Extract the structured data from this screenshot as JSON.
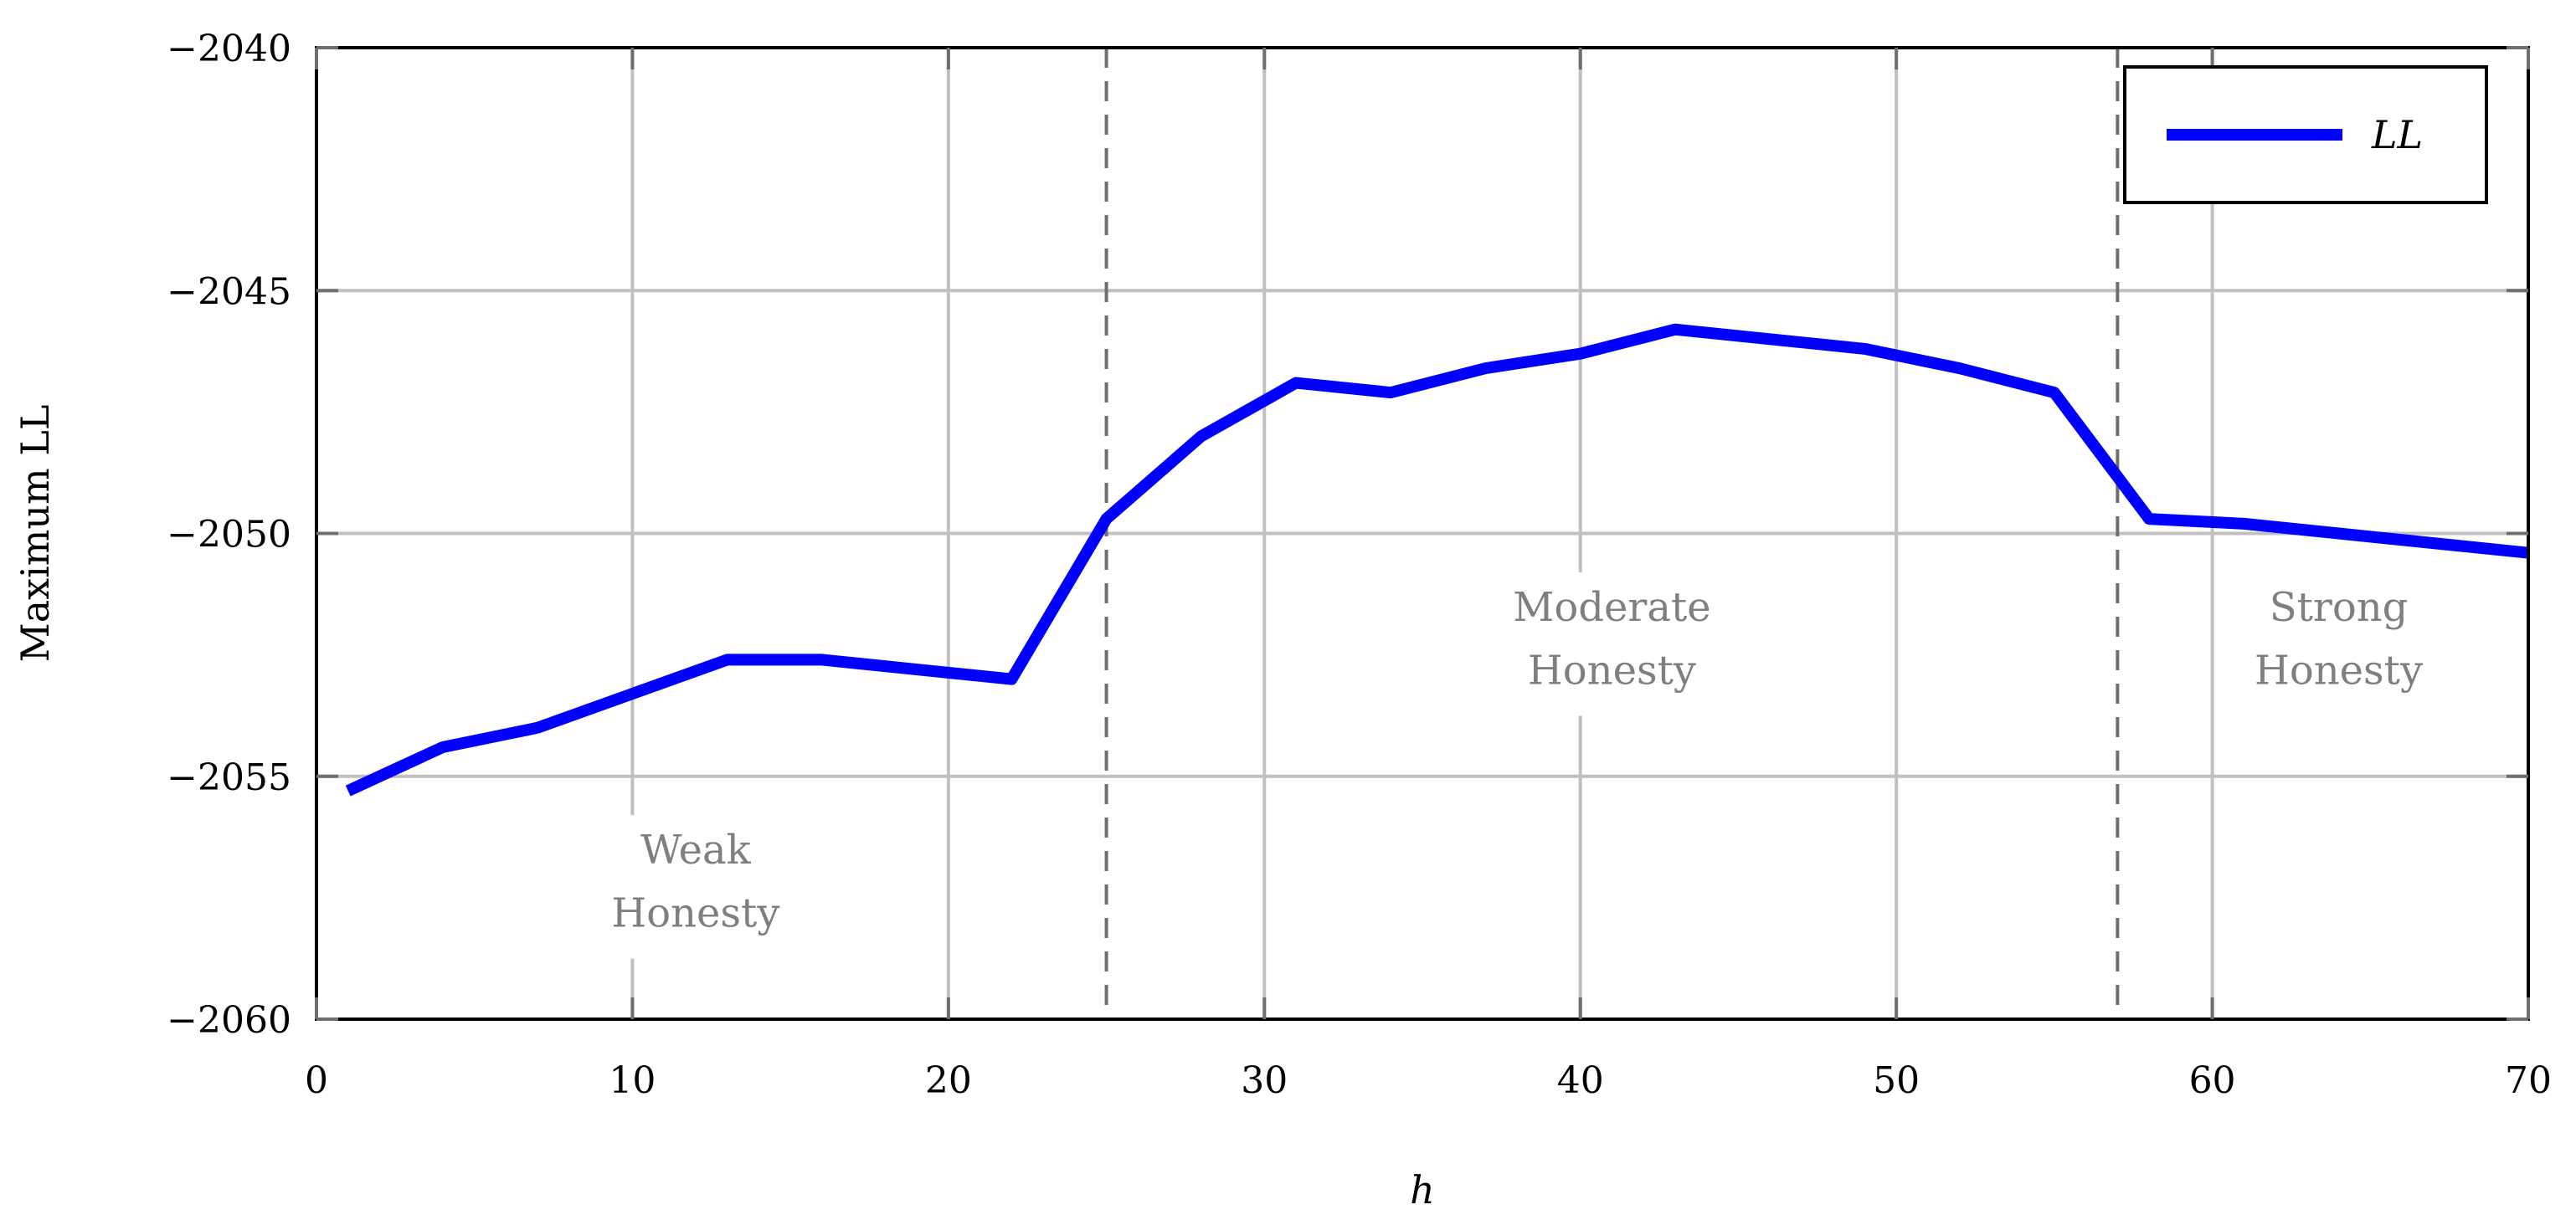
{
  "chart_data": {
    "type": "line",
    "xlabel": "h",
    "ylabel": "Maximum LL",
    "xlim": [
      0,
      70
    ],
    "ylim": [
      -2060,
      -2040
    ],
    "x_ticks": [
      0,
      10,
      20,
      30,
      40,
      50,
      60,
      70
    ],
    "y_ticks": [
      -2040,
      -2045,
      -2050,
      -2055,
      -2060
    ],
    "y_tick_labels": [
      "−2040",
      "−2045",
      "−2050",
      "−2055",
      "−2060"
    ],
    "grid": true,
    "legend_position": "top-right",
    "series": [
      {
        "name": "LL",
        "color": "#0000ff",
        "x": [
          1,
          4,
          7,
          10,
          13,
          16,
          19,
          22,
          25,
          28,
          31,
          34,
          37,
          40,
          43,
          46,
          49,
          52,
          55,
          58,
          61,
          64,
          67,
          70
        ],
        "y": [
          -2055.3,
          -2054.4,
          -2054.0,
          -2053.3,
          -2052.6,
          -2052.6,
          -2052.8,
          -2053.0,
          -2049.7,
          -2048.0,
          -2046.9,
          -2047.1,
          -2046.6,
          -2046.3,
          -2045.8,
          -2046.0,
          -2046.2,
          -2046.6,
          -2047.1,
          -2049.7,
          -2049.8,
          -2050.0,
          -2050.2,
          -2050.4
        ]
      }
    ],
    "boundaries": [
      25,
      57
    ],
    "regions": [
      {
        "line1": "Weak",
        "line2": "Honesty"
      },
      {
        "line1": "Moderate",
        "line2": "Honesty"
      },
      {
        "line1": "Strong",
        "line2": "Honesty"
      }
    ]
  }
}
